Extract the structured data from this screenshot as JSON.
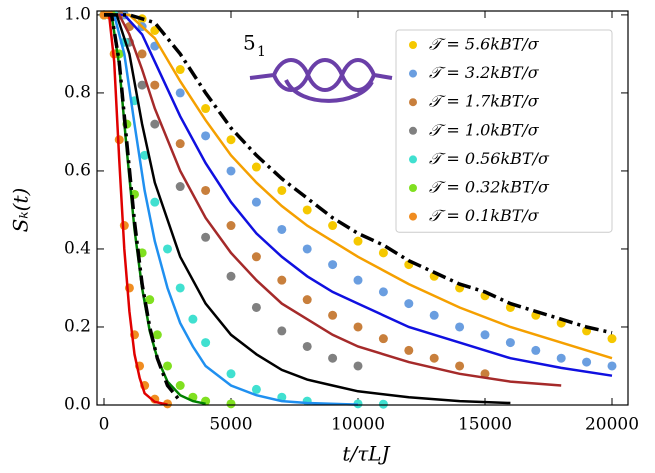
{
  "chart_data": {
    "type": "line",
    "xlabel": "t/τLJ",
    "ylabel": "Sₖ(t)",
    "annotation": {
      "text": "5",
      "subscript": "1"
    },
    "xlim": [
      -276,
      20630
    ],
    "ylim": [
      0,
      1.01
    ],
    "xticks": [
      0,
      5000,
      10000,
      15000,
      20000
    ],
    "yticks": [
      {
        "value": 0,
        "label": "0.0"
      },
      0.2,
      0.4,
      0.6,
      0.8,
      {
        "value": 1,
        "label": "1.0"
      }
    ],
    "legend": "upper right",
    "series": [
      {
        "name": "𝒯 = 5.6kBT/σ",
        "mode": "scatter",
        "color": "#f5c800",
        "x": [
          0,
          800,
          1500,
          2000,
          3000,
          4000,
          5000,
          6000,
          7000,
          8000,
          9000,
          10000,
          11000,
          12000,
          13000,
          14000,
          15000,
          16000,
          17000,
          18000,
          19000,
          20000
        ],
        "values": [
          1,
          1,
          0.99,
          0.96,
          0.86,
          0.76,
          0.68,
          0.61,
          0.55,
          0.5,
          0.46,
          0.42,
          0.39,
          0.36,
          0.33,
          0.3,
          0.28,
          0.25,
          0.23,
          0.21,
          0.19,
          0.17
        ]
      },
      {
        "name": "𝒯 = 3.2kBT/σ",
        "mode": "scatter",
        "color": "#6a9ee0",
        "x": [
          0,
          800,
          1500,
          2000,
          3000,
          4000,
          5000,
          6000,
          7000,
          8000,
          9000,
          10000,
          11000,
          12000,
          13000,
          14000,
          15000,
          16000,
          17000,
          18000,
          19000,
          20000
        ],
        "values": [
          1,
          1,
          0.97,
          0.92,
          0.8,
          0.69,
          0.6,
          0.52,
          0.45,
          0.4,
          0.36,
          0.32,
          0.29,
          0.26,
          0.23,
          0.2,
          0.18,
          0.16,
          0.14,
          0.12,
          0.11,
          0.1
        ]
      },
      {
        "name": "𝒯 = 1.7kBT/σ",
        "mode": "scatter",
        "color": "#c87f3c",
        "x": [
          0,
          600,
          1000,
          1500,
          2000,
          3000,
          4000,
          5000,
          6000,
          7000,
          8000,
          9000,
          10000,
          11000,
          12000,
          13000,
          14000,
          15000
        ],
        "values": [
          1,
          1,
          0.97,
          0.9,
          0.82,
          0.67,
          0.55,
          0.46,
          0.38,
          0.32,
          0.27,
          0.23,
          0.2,
          0.17,
          0.14,
          0.12,
          0.1,
          0.08
        ]
      },
      {
        "name": "𝒯 = 1.0kBT/σ",
        "mode": "scatter",
        "color": "#808080",
        "x": [
          0,
          500,
          1000,
          1500,
          2000,
          3000,
          4000,
          5000,
          6000,
          7000,
          8000,
          9000,
          10000
        ],
        "values": [
          1,
          1,
          0.93,
          0.82,
          0.72,
          0.56,
          0.43,
          0.33,
          0.25,
          0.19,
          0.15,
          0.12,
          0.1
        ]
      },
      {
        "name": "𝒯 = 0.56kBT/σ",
        "mode": "scatter",
        "color": "#40e0d0",
        "x": [
          0,
          400,
          800,
          1200,
          1600,
          2000,
          2500,
          3000,
          3500,
          4000,
          5000,
          6000,
          7000,
          8000,
          10000,
          11000
        ],
        "values": [
          1,
          1,
          0.93,
          0.78,
          0.64,
          0.52,
          0.4,
          0.3,
          0.22,
          0.16,
          0.08,
          0.04,
          0.02,
          0.01,
          0.003,
          0.002
        ]
      },
      {
        "name": "𝒯 = 0.32kBT/σ",
        "mode": "scatter",
        "color": "#80e020",
        "x": [
          0,
          300,
          600,
          900,
          1200,
          1500,
          1800,
          2100,
          2500,
          3000,
          3500,
          4000,
          5000
        ],
        "values": [
          1,
          1,
          0.9,
          0.72,
          0.54,
          0.39,
          0.27,
          0.18,
          0.1,
          0.05,
          0.02,
          0.01,
          0.003
        ]
      },
      {
        "name": "𝒯 = 0.1kBT/σ",
        "mode": "scatter",
        "color": "#f08c20",
        "x": [
          0,
          200,
          400,
          600,
          800,
          1000,
          1200,
          1400,
          1600,
          2000,
          2500
        ],
        "values": [
          1,
          1,
          0.9,
          0.68,
          0.46,
          0.3,
          0.18,
          0.1,
          0.05,
          0.015,
          0.003
        ]
      },
      {
        "mode": "line",
        "color": "#f5a000",
        "x": [
          0,
          1000,
          2000,
          3000,
          4000,
          5000,
          6000,
          7000,
          8000,
          9000,
          10000,
          12000,
          14000,
          16000,
          18000,
          20000
        ],
        "values": [
          1,
          1,
          0.94,
          0.83,
          0.73,
          0.64,
          0.57,
          0.51,
          0.46,
          0.42,
          0.38,
          0.31,
          0.25,
          0.2,
          0.16,
          0.12
        ]
      },
      {
        "mode": "line",
        "color": "#1010e0",
        "x": [
          0,
          800,
          1500,
          2000,
          3000,
          4000,
          5000,
          6000,
          7000,
          8000,
          9000,
          10000,
          12000,
          14000,
          16000,
          18000,
          20000
        ],
        "values": [
          1,
          1,
          0.95,
          0.88,
          0.74,
          0.62,
          0.52,
          0.44,
          0.38,
          0.33,
          0.29,
          0.26,
          0.2,
          0.16,
          0.12,
          0.095,
          0.075
        ]
      },
      {
        "mode": "line",
        "color": "#a52a2a",
        "x": [
          0,
          600,
          1000,
          1500,
          2000,
          3000,
          4000,
          5000,
          6000,
          7000,
          8000,
          9000,
          10000,
          12000,
          14000,
          16000,
          18000
        ],
        "values": [
          1,
          1,
          0.95,
          0.86,
          0.76,
          0.6,
          0.48,
          0.39,
          0.32,
          0.26,
          0.22,
          0.18,
          0.15,
          0.11,
          0.08,
          0.06,
          0.05
        ]
      },
      {
        "mode": "line",
        "color": "#000000",
        "x": [
          0,
          500,
          1000,
          1500,
          2000,
          3000,
          4000,
          5000,
          6000,
          7000,
          8000,
          9000,
          10000,
          12000,
          14000,
          16000
        ],
        "values": [
          1,
          1,
          0.9,
          0.72,
          0.57,
          0.38,
          0.26,
          0.18,
          0.13,
          0.09,
          0.065,
          0.05,
          0.035,
          0.02,
          0.01,
          0.005
        ]
      },
      {
        "mode": "line",
        "color": "#2090f0",
        "x": [
          0,
          400,
          800,
          1200,
          1600,
          2000,
          2500,
          3000,
          3500,
          4000,
          5000,
          6000,
          7000,
          8000,
          10000
        ],
        "values": [
          1,
          1,
          0.9,
          0.72,
          0.55,
          0.42,
          0.3,
          0.21,
          0.15,
          0.1,
          0.05,
          0.025,
          0.01,
          0.005,
          0.001
        ]
      },
      {
        "mode": "line",
        "color": "#008000",
        "x": [
          0,
          300,
          600,
          900,
          1200,
          1500,
          1800,
          2100,
          2500,
          3000,
          3500,
          4000
        ],
        "values": [
          1,
          1,
          0.87,
          0.65,
          0.45,
          0.3,
          0.19,
          0.12,
          0.06,
          0.025,
          0.01,
          0.003
        ]
      },
      {
        "mode": "line",
        "color": "#e00000",
        "x": [
          0,
          200,
          400,
          600,
          800,
          1000,
          1200,
          1400,
          1600,
          2000,
          2500
        ],
        "values": [
          1,
          1,
          0.88,
          0.63,
          0.4,
          0.24,
          0.13,
          0.07,
          0.03,
          0.008,
          0.001
        ]
      },
      {
        "mode": "line",
        "dash": "dashdot",
        "color": "#000000",
        "x": [
          0,
          1000,
          2000,
          3000,
          4000,
          5000,
          6000,
          7000,
          8000,
          9000,
          10000,
          11000,
          12000,
          13000,
          14000,
          15000,
          16000,
          17000,
          18000,
          19000,
          20000
        ],
        "values": [
          1,
          1,
          0.98,
          0.9,
          0.8,
          0.71,
          0.64,
          0.58,
          0.53,
          0.48,
          0.44,
          0.41,
          0.37,
          0.34,
          0.31,
          0.29,
          0.26,
          0.24,
          0.22,
          0.2,
          0.185
        ]
      },
      {
        "mode": "line",
        "dash": "dashdot",
        "color": "#000000",
        "x": [
          0,
          300,
          600,
          900,
          1200,
          1500,
          1800,
          2100,
          2500,
          3000
        ],
        "values": [
          1,
          1,
          0.88,
          0.67,
          0.47,
          0.31,
          0.2,
          0.12,
          0.05,
          0.01
        ]
      }
    ]
  }
}
